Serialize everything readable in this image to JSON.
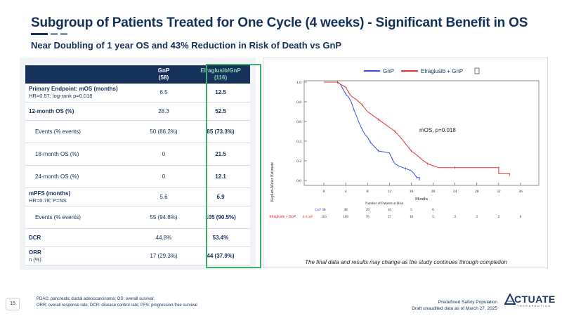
{
  "slide": {
    "title": "Subgroup of Patients Treated for One Cycle (4 weeks) - Significant Benefit in OS",
    "subtitle": "Near Doubling of 1 year OS and 43% Reduction in Risk of Death vs GnP",
    "page_number": "15",
    "footnote_line1": "PDAC: pancreatic ductal adenocarcinoma; OS: overall survival;",
    "footnote_line2": "ORR: overall response rate; DCR: disease control rate; PFS: progression-free survival",
    "footer_right_line1": "Predefined Safety Population",
    "footer_right_line2": "Draft unaudited data as of March 27, 2025",
    "logo_text": "CTUATE",
    "logo_subtext": "THERAPEUTICS",
    "colors": {
      "navy": "#16315a",
      "accent_green": "#3fae6a",
      "gnp_blue": "#3b4fd8",
      "elra_red": "#e0322e",
      "bar_teal": "#5b7c8d"
    }
  },
  "table": {
    "col1_header": "GnP",
    "col1_n": "(58)",
    "col2_header": "Elraglusib/GnP",
    "col2_n": "(116)",
    "rows": [
      {
        "label": "Primary Endpoint: mOS (months)",
        "sublabel": "HR=0.57; log-rank p=0.018",
        "gnp": "6.5",
        "elra": "12.5"
      },
      {
        "label": "12-month OS (%)",
        "gnp": "28.3",
        "elra": "52.5"
      },
      {
        "label": "Events (% events)",
        "gnp": "50  (86.2%)",
        "elra": "85 (73.3%)"
      },
      {
        "label": "18-month OS (%)",
        "gnp": "0",
        "elra": "21.5"
      },
      {
        "label": "24-month OS (%)",
        "gnp": "0",
        "elra": "12.1"
      },
      {
        "label": "mPFS (months)",
        "sublabel": "HR=0.78; P=NS",
        "gnp": "5.6",
        "elra": "6.9"
      },
      {
        "label": "Events (% events)",
        "gnp": "55 (94.8%)",
        "elra": "105 (90.5%)"
      },
      {
        "label": "DCR",
        "gnp": "44.8%",
        "elra": "53.4%"
      },
      {
        "label": "ORR",
        "sublabel": "n (%)",
        "gnp": "17 (29.3%)",
        "elra": "44 (37.9%)"
      }
    ]
  },
  "km_chart": {
    "legend_gnp": "GnP",
    "legend_elra": "Elraglusib + GnP",
    "ylabel": "Kaplan-Meier Estimate",
    "xlabel": "Months",
    "annotation": "mOS, p=0.018",
    "risk_title": "Number of Patients at Risk",
    "risk_label_gnp": "GnP",
    "risk_label_elra_prefix": "Elraglusib + GnP",
    "risk_label_elra": "d+GnP",
    "disclaimer": "The final data and results may change as the study continues through completion"
  },
  "chart_data": {
    "type": "line",
    "title": "",
    "xlabel": "Months",
    "ylabel": "Kaplan-Meier Estimate",
    "xlim": [
      0,
      36
    ],
    "ylim": [
      0,
      1.0
    ],
    "x_ticks": [
      "0",
      "4",
      "8",
      "12",
      "16",
      "20",
      "24",
      "28",
      "32",
      "36"
    ],
    "y_ticks": [
      "0.0",
      "0.2",
      "0.4",
      "0.6",
      "0.8",
      "1.0"
    ],
    "series": [
      {
        "name": "GnP",
        "color": "#3b4fd8",
        "points": [
          [
            0,
            1.0
          ],
          [
            2.5,
            1.0
          ],
          [
            3,
            0.98
          ],
          [
            3.5,
            0.93
          ],
          [
            4,
            0.88
          ],
          [
            4.5,
            0.85
          ],
          [
            5,
            0.8
          ],
          [
            5.5,
            0.72
          ],
          [
            6,
            0.65
          ],
          [
            6.5,
            0.58
          ],
          [
            7,
            0.52
          ],
          [
            7.5,
            0.47
          ],
          [
            8,
            0.44
          ],
          [
            8.5,
            0.39
          ],
          [
            9,
            0.36
          ],
          [
            9.5,
            0.33
          ],
          [
            10,
            0.3
          ],
          [
            11,
            0.29
          ],
          [
            12,
            0.28
          ],
          [
            12.5,
            0.22
          ],
          [
            13,
            0.17
          ],
          [
            14,
            0.14
          ],
          [
            15,
            0.12
          ],
          [
            16,
            0.1
          ],
          [
            16.5,
            0.07
          ],
          [
            17,
            0.03
          ],
          [
            17.5,
            0.03
          ],
          [
            17.5,
            0.0
          ]
        ]
      },
      {
        "name": "Elraglusib + GnP",
        "color": "#e0322e",
        "points": [
          [
            0,
            1.0
          ],
          [
            2.5,
            1.0
          ],
          [
            3,
            0.98
          ],
          [
            4,
            0.95
          ],
          [
            4.5,
            0.9
          ],
          [
            5,
            0.86
          ],
          [
            6,
            0.82
          ],
          [
            7,
            0.77
          ],
          [
            8,
            0.7
          ],
          [
            9,
            0.66
          ],
          [
            10,
            0.62
          ],
          [
            11,
            0.58
          ],
          [
            12,
            0.54
          ],
          [
            13,
            0.5
          ],
          [
            14,
            0.44
          ],
          [
            15,
            0.37
          ],
          [
            16,
            0.3
          ],
          [
            17,
            0.26
          ],
          [
            18,
            0.21
          ],
          [
            19,
            0.17
          ],
          [
            20,
            0.15
          ],
          [
            21,
            0.13
          ],
          [
            24,
            0.13
          ],
          [
            28,
            0.13
          ],
          [
            31,
            0.13
          ],
          [
            32,
            0.13
          ],
          [
            32,
            0.07
          ],
          [
            34,
            0.07
          ],
          [
            34,
            0.06
          ]
        ]
      }
    ],
    "annotations": [
      "mOS, p=0.018"
    ],
    "risk_table": {
      "times": [
        "0",
        "4",
        "8",
        "12",
        "16",
        "20",
        "24",
        "28",
        "32",
        "36"
      ],
      "GnP": [
        "58",
        "48",
        "29",
        "16",
        "5",
        "0"
      ],
      "Elraglusib + GnP": [
        "116",
        "109",
        "76",
        "57",
        "18",
        "5",
        "3",
        "2",
        "2",
        "0"
      ]
    }
  }
}
